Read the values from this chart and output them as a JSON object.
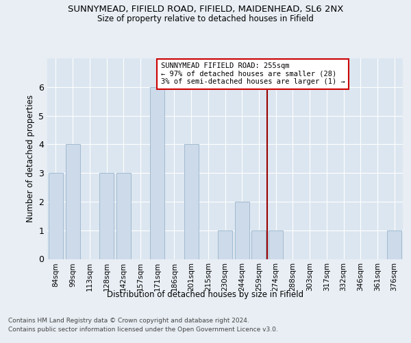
{
  "title1": "SUNNYMEAD, FIFIELD ROAD, FIFIELD, MAIDENHEAD, SL6 2NX",
  "title2": "Size of property relative to detached houses in Fifield",
  "xlabel": "Distribution of detached houses by size in Fifield",
  "ylabel": "Number of detached properties",
  "categories": [
    "84sqm",
    "99sqm",
    "113sqm",
    "128sqm",
    "142sqm",
    "157sqm",
    "171sqm",
    "186sqm",
    "201sqm",
    "215sqm",
    "230sqm",
    "244sqm",
    "259sqm",
    "274sqm",
    "288sqm",
    "303sqm",
    "317sqm",
    "332sqm",
    "346sqm",
    "361sqm",
    "376sqm"
  ],
  "values": [
    3,
    4,
    0,
    3,
    3,
    0,
    6,
    0,
    4,
    0,
    1,
    2,
    1,
    1,
    0,
    0,
    0,
    0,
    0,
    0,
    1
  ],
  "bar_color": "#ccdaea",
  "bar_edgecolor": "#9ab4cc",
  "vline_pos": 12.5,
  "vline_color": "#990000",
  "annotation_title": "SUNNYMEAD FIFIELD ROAD: 255sqm",
  "annotation_line2": "← 97% of detached houses are smaller (28)",
  "annotation_line3": "3% of semi-detached houses are larger (1) →",
  "annotation_box_color": "#cc0000",
  "footer_line1": "Contains HM Land Registry data © Crown copyright and database right 2024.",
  "footer_line2": "Contains public sector information licensed under the Open Government Licence v3.0.",
  "ylim": [
    0,
    7
  ],
  "yticks": [
    0,
    1,
    2,
    3,
    4,
    5,
    6
  ],
  "bg_color": "#e8eef4",
  "axes_bg_color": "#dce6f0"
}
